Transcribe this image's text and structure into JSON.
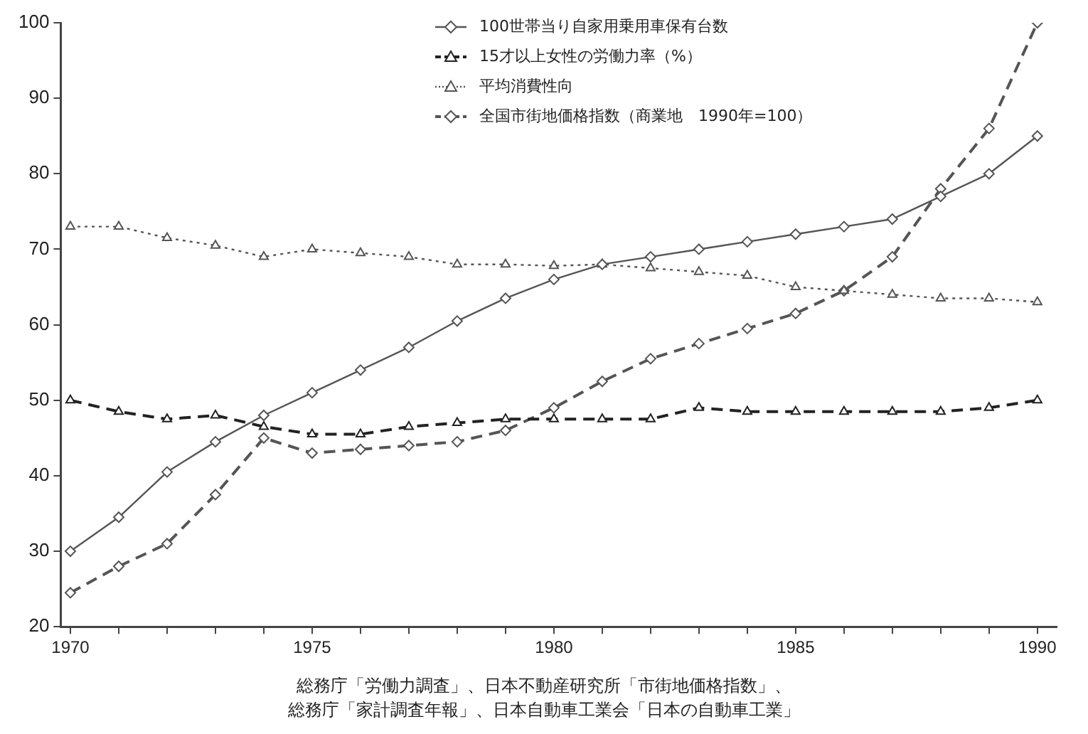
{
  "chart_data": {
    "type": "line",
    "x": [
      1970,
      1971,
      1972,
      1973,
      1974,
      1975,
      1976,
      1977,
      1978,
      1979,
      1980,
      1981,
      1982,
      1983,
      1984,
      1985,
      1986,
      1987,
      1988,
      1989,
      1990
    ],
    "series": [
      {
        "name": "100世帯当り自家用乗用車保有台数",
        "color": "#555555",
        "marker": "diamond",
        "line_style": "solid",
        "values": [
          30,
          34.5,
          40.5,
          44.5,
          48,
          51,
          54,
          57,
          60.5,
          63.5,
          66,
          68,
          69,
          70,
          71,
          72,
          73,
          74,
          77,
          80,
          85
        ]
      },
      {
        "name": "15才以上女性の労働力率（%）",
        "color": "#222222",
        "marker": "triangle",
        "line_style": "dashed",
        "values": [
          50,
          48.5,
          47.5,
          48,
          46.5,
          45.5,
          45.5,
          46.5,
          47,
          47.5,
          47.5,
          47.5,
          47.5,
          49,
          48.5,
          48.5,
          48.5,
          48.5,
          48.5,
          49,
          50
        ]
      },
      {
        "name": "平均消費性向",
        "color": "#555555",
        "marker": "triangle",
        "line_style": "dotted",
        "values": [
          73,
          73,
          71.5,
          70.5,
          69,
          70,
          69.5,
          69,
          68,
          68,
          67.8,
          68,
          67.5,
          67,
          66.5,
          65,
          64.5,
          64,
          63.5,
          63.5,
          63
        ]
      },
      {
        "name": "全国市街地価格指数（商業地　1990年=100）",
        "color": "#555555",
        "marker": "diamond",
        "line_style": "dashed",
        "values": [
          24.5,
          28,
          31,
          37.5,
          45,
          43,
          43.5,
          44,
          44.5,
          46,
          49,
          52.5,
          55.5,
          57.5,
          59.5,
          61.5,
          64.5,
          69,
          78,
          86,
          100
        ]
      }
    ],
    "xlim": [
      1969.8,
      1990.4
    ],
    "xticks": [
      1970,
      {
        "value": 1971,
        "label": null
      },
      {
        "value": 1972,
        "label": null
      },
      {
        "value": 1973,
        "label": null
      },
      {
        "value": 1974,
        "label": null
      },
      1975,
      {
        "value": 1976,
        "label": null
      },
      {
        "value": 1977,
        "label": null
      },
      {
        "value": 1978,
        "label": null
      },
      {
        "value": 1979,
        "label": null
      },
      1980,
      {
        "value": 1981,
        "label": null
      },
      {
        "value": 1982,
        "label": null
      },
      {
        "value": 1983,
        "label": null
      },
      {
        "value": 1984,
        "label": null
      },
      1985,
      {
        "value": 1986,
        "label": null
      },
      {
        "value": 1987,
        "label": null
      },
      {
        "value": 1988,
        "label": null
      },
      {
        "value": 1989,
        "label": null
      },
      1990
    ],
    "ylim": [
      20,
      100
    ],
    "yticks": [
      20,
      30,
      40,
      50,
      60,
      70,
      80,
      90,
      100
    ],
    "grid": false,
    "legend": "top right",
    "annotations": [
      "総務庁「労働力調査」、日本不動産研究所「市街地価格指数」、",
      "総務庁「家計調査年報」、日本自動車工業会「日本の自動車工業」"
    ]
  }
}
